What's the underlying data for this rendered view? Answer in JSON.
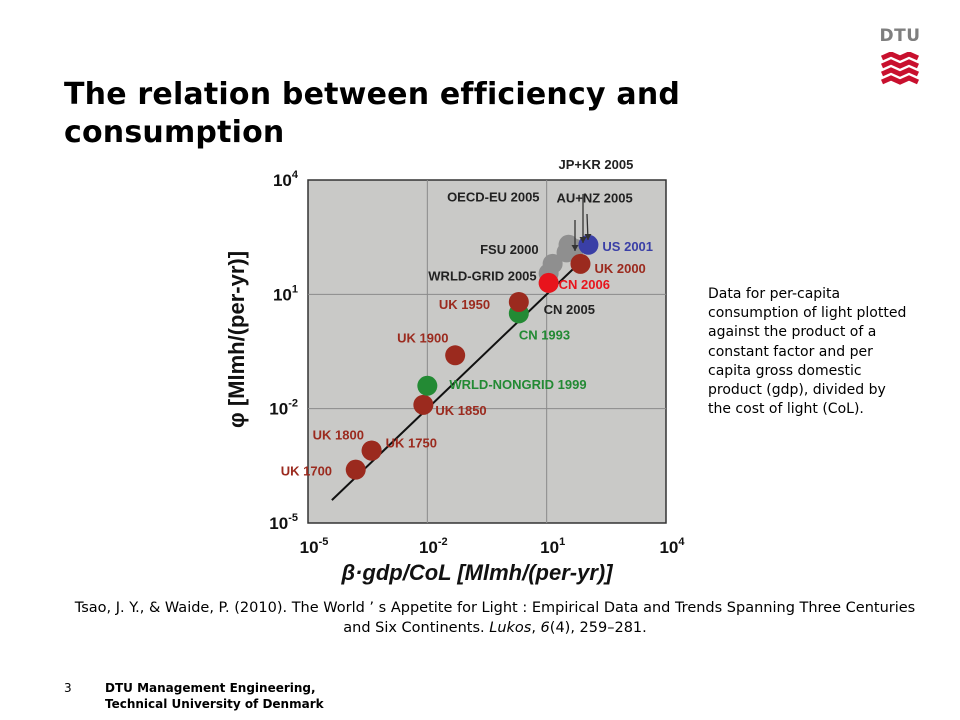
{
  "slide": {
    "title_line1": "The relation between efficiency and",
    "title_line2": "consumption",
    "logo_text": "DTU",
    "logo_color": "#c8102e",
    "side_text": "Data for per-capita consumption of light plotted  against the product of a constant factor and per capita gross domestic product (gdp), divided by the cost of light (CoL).",
    "citation_main": "Tsao, J. Y., & Waide, P. (2010). The World ’ s Appetite for Light : Empirical Data and Trends Spanning Three Centuries and Six Continents.",
    "citation_journal": "Lukos",
    "citation_volume": "6",
    "citation_rest": "(4), 259–281.",
    "page_number": "3",
    "footer_line1": "DTU Management Engineering,",
    "footer_line2": "Technical University of Denmark"
  },
  "chart_data": {
    "type": "scatter",
    "scale": "log",
    "xlabel": "β·gdp/CoL [Mlmh/(per-yr)]",
    "ylabel": "φ [Mlmh/(per-yr)]",
    "xlim": [
      -5,
      4
    ],
    "ylim": [
      -5,
      4
    ],
    "x_ticks": [
      {
        "base": "10",
        "exp": "-5"
      },
      {
        "base": "10",
        "exp": "-2"
      },
      {
        "base": "10",
        "exp": "1"
      },
      {
        "base": "10",
        "exp": "4"
      }
    ],
    "y_ticks": [
      {
        "base": "10",
        "exp": "-5"
      },
      {
        "base": "10",
        "exp": "-2"
      },
      {
        "base": "10",
        "exp": "1"
      },
      {
        "base": "10",
        "exp": "4"
      }
    ],
    "grid": true,
    "background": "#c9c9c7",
    "trend_line": {
      "x": [
        -4.4,
        2.0
      ],
      "y": [
        -4.4,
        2.0
      ]
    },
    "colors": {
      "brown": "#9b2a1e",
      "green": "#238a34",
      "blue": "#3a3fa6",
      "red": "#e8141c",
      "gray": "#8f8f8f"
    },
    "points": [
      {
        "label": "UK 1700",
        "x": -3.8,
        "y": -3.6,
        "color": "brown"
      },
      {
        "label": "UK 1750",
        "x": -3.4,
        "y": -3.1,
        "color": "brown"
      },
      {
        "label": "UK 1800",
        "x": -3.4,
        "y": -3.1,
        "color": "brown"
      },
      {
        "label": "UK 1850",
        "x": -2.1,
        "y": -1.9,
        "color": "brown"
      },
      {
        "label": "WRLD-NONGRID 1999",
        "x": -2.0,
        "y": -1.4,
        "color": "green"
      },
      {
        "label": "UK 1900",
        "x": -1.3,
        "y": -0.6,
        "color": "brown"
      },
      {
        "label": "CN 1993",
        "x": 0.3,
        "y": 0.5,
        "color": "green"
      },
      {
        "label": "UK 1950",
        "x": 0.3,
        "y": 0.8,
        "color": "brown"
      },
      {
        "label": "WRLD-GRID 2005",
        "x": 1.05,
        "y": 1.55,
        "color": "gray"
      },
      {
        "label": "FSU 2000",
        "x": 1.15,
        "y": 1.8,
        "color": "gray"
      },
      {
        "label": "OECD-EU 2005",
        "x": 1.5,
        "y": 2.1,
        "color": "gray"
      },
      {
        "label": "AU+NZ 2005",
        "x": 1.7,
        "y": 2.2,
        "color": "gray"
      },
      {
        "label": "JP+KR 2005",
        "x": 1.55,
        "y": 2.3,
        "color": "gray"
      },
      {
        "label": "CN 2005",
        "x": 1.05,
        "y": 1.3,
        "color": "gray"
      },
      {
        "label": "CN 2006",
        "x": 1.05,
        "y": 1.3,
        "color": "red"
      },
      {
        "label": "UK 2000",
        "x": 1.85,
        "y": 1.8,
        "color": "brown"
      },
      {
        "label": "US 2001",
        "x": 2.05,
        "y": 2.3,
        "color": "blue"
      }
    ]
  }
}
